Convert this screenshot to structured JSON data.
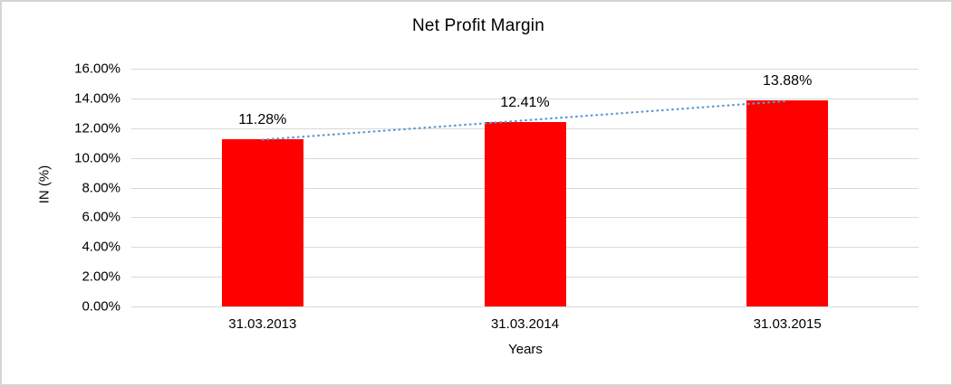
{
  "chart_data": {
    "type": "bar",
    "title": "Net Profit Margin",
    "xlabel": "Years",
    "ylabel": "IN (%)",
    "categories": [
      "31.03.2013",
      "31.03.2014",
      "31.03.2015"
    ],
    "values": [
      11.28,
      12.41,
      13.88
    ],
    "data_labels": [
      "11.28%",
      "12.41%",
      "13.88%"
    ],
    "ylim": [
      0,
      16
    ],
    "ytick_step": 2,
    "ytick_labels": [
      "0.00%",
      "2.00%",
      "4.00%",
      "6.00%",
      "8.00%",
      "10.00%",
      "12.00%",
      "14.00%",
      "16.00%"
    ],
    "grid": true,
    "legend_position": "none",
    "bar_color": "#ff0000",
    "gridline_color": "#d9d9d9",
    "trendline": {
      "type": "linear",
      "style": "dotted",
      "color": "#5b9bd5"
    }
  }
}
